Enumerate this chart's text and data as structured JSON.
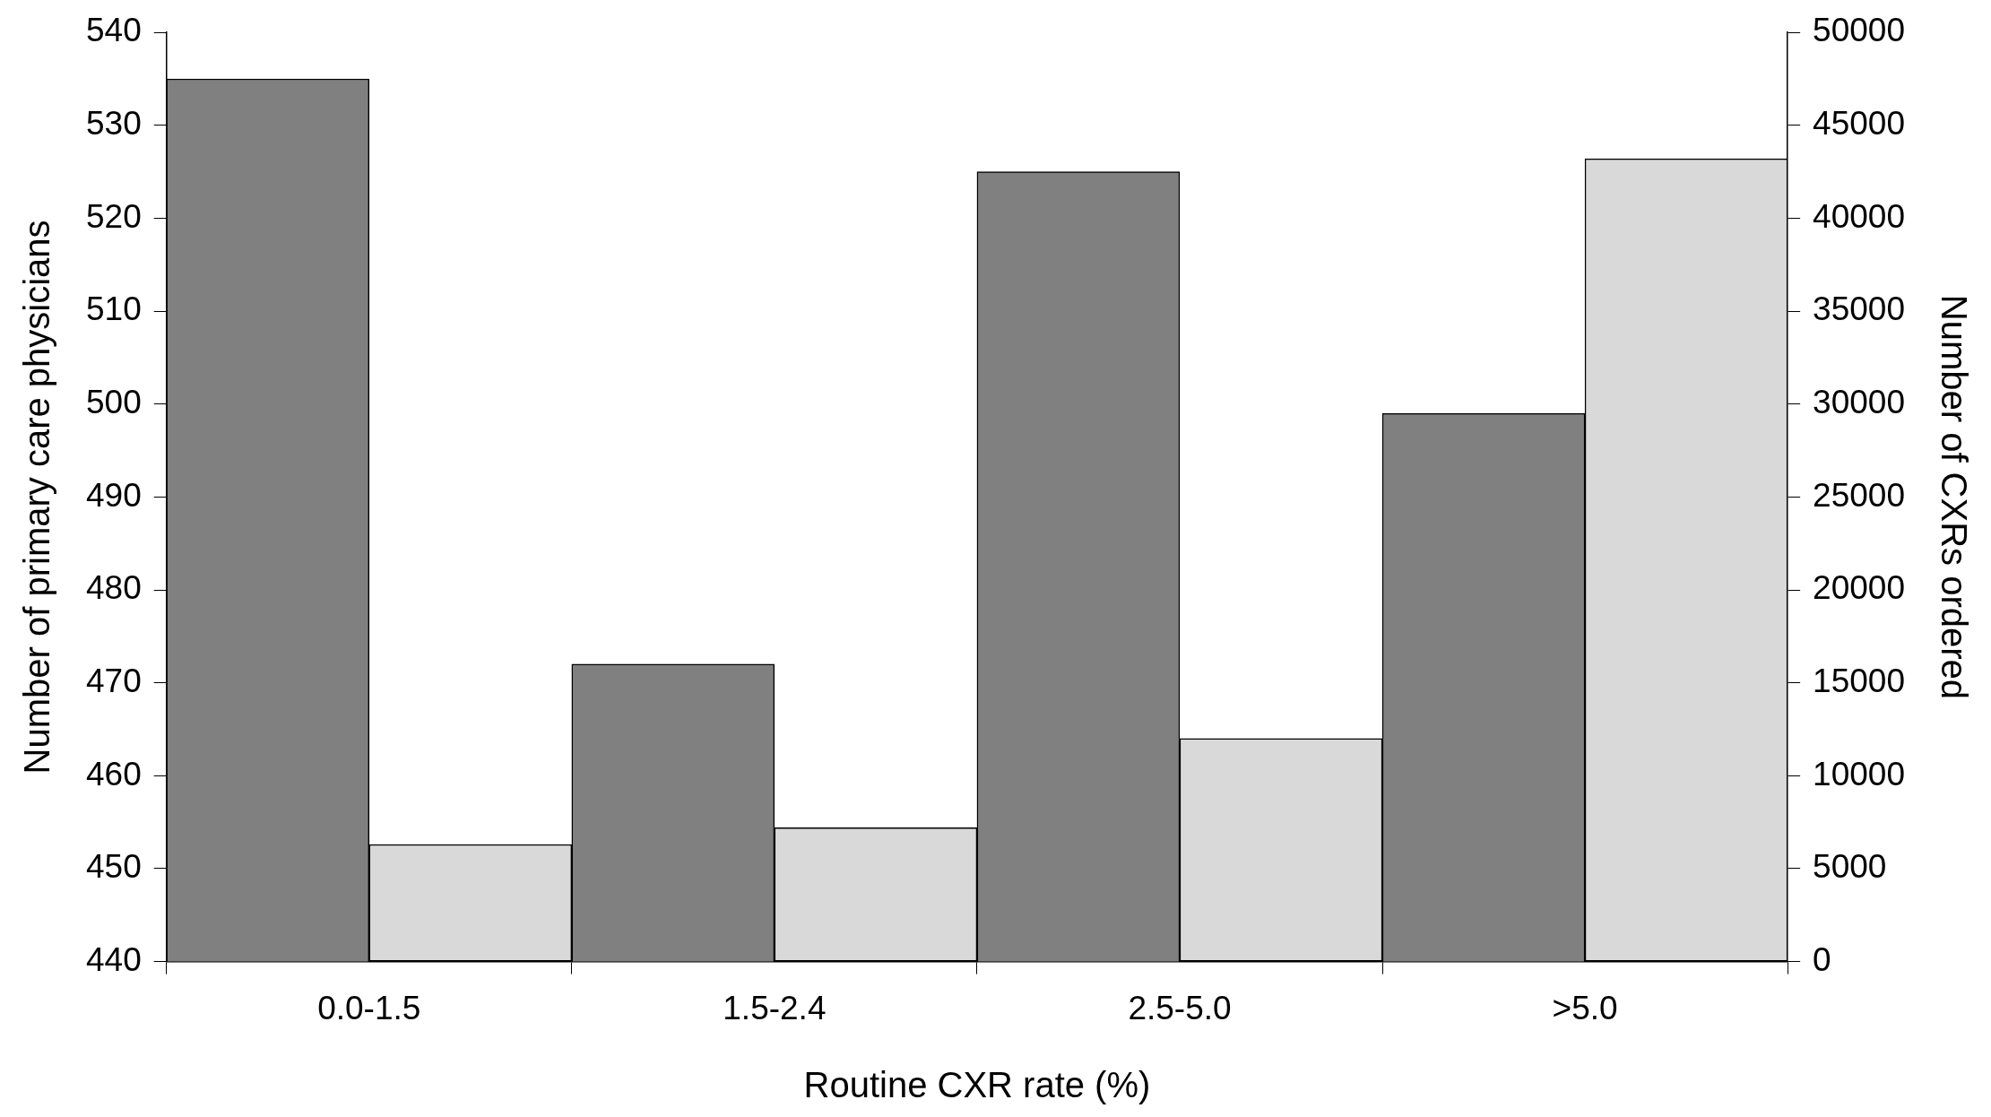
{
  "chart_data": {
    "type": "bar",
    "xlabel": "Routine CXR rate (%)",
    "ylabel": "Number of primary care physicians",
    "y2label": "Number of CXRs ordered",
    "categories": [
      "0.0-1.5",
      "1.5-2.4",
      "2.5-5.0",
      ">5.0"
    ],
    "series": [
      {
        "color": "#808080",
        "values": [
          535,
          472,
          525,
          499
        ]
      },
      {
        "color": "#d9d9d9",
        "axis": "y2",
        "values": [
          6300,
          7200,
          12000,
          43200
        ]
      }
    ],
    "ylim": [
      440,
      540
    ],
    "yticks": [
      440,
      450,
      460,
      470,
      480,
      490,
      500,
      510,
      520,
      530,
      540
    ],
    "y2lim": [
      0,
      50000
    ],
    "y2ticks": [
      0,
      5000,
      10000,
      15000,
      20000,
      25000,
      30000,
      35000,
      40000,
      45000,
      50000
    ],
    "grid": false,
    "legend": false
  }
}
